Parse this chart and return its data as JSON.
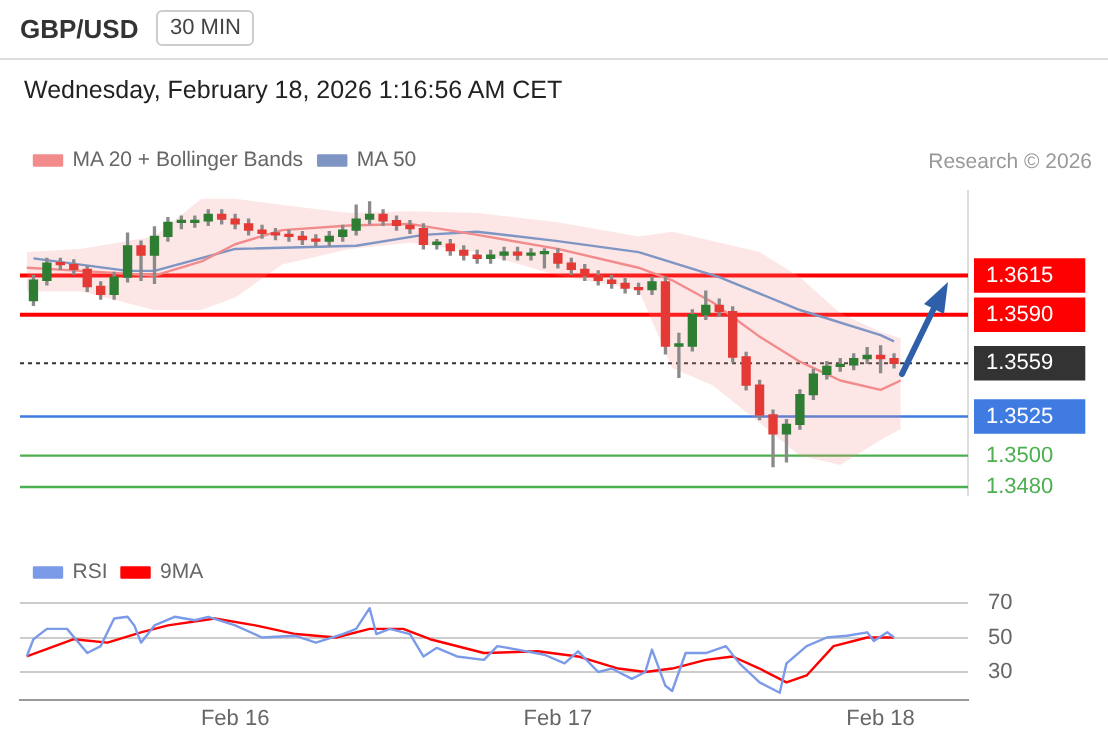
{
  "chart_data": [
    {
      "type": "candlestick",
      "title": "GBP/USD",
      "subtitle": "Wednesday, February 18, 2026 1:16:56 AM CET",
      "annotations": [
        "30 MIN",
        "Research © 2026"
      ],
      "x": [
        "2026-02-15T09:00",
        "2026-02-15T10:00",
        "2026-02-15T11:00",
        "2026-02-15T12:00",
        "2026-02-15T13:00",
        "2026-02-15T14:00",
        "2026-02-15T15:00",
        "2026-02-15T16:00",
        "2026-02-15T17:00",
        "2026-02-15T18:00",
        "2026-02-15T19:00",
        "2026-02-15T20:00",
        "2026-02-15T21:00",
        "2026-02-15T22:00",
        "2026-02-15T23:00",
        "2026-02-16T00:00",
        "2026-02-16T01:00",
        "2026-02-16T02:00",
        "2026-02-16T03:00",
        "2026-02-16T04:00",
        "2026-02-16T05:00",
        "2026-02-16T06:00",
        "2026-02-16T07:00",
        "2026-02-16T08:00",
        "2026-02-16T09:00",
        "2026-02-16T10:00",
        "2026-02-16T11:00",
        "2026-02-16T12:00",
        "2026-02-16T13:00",
        "2026-02-16T14:00",
        "2026-02-16T15:00",
        "2026-02-16T16:00",
        "2026-02-16T17:00",
        "2026-02-16T18:00",
        "2026-02-16T19:00",
        "2026-02-16T20:00",
        "2026-02-16T21:00",
        "2026-02-16T22:00",
        "2026-02-16T23:00",
        "2026-02-17T00:00",
        "2026-02-17T01:00",
        "2026-02-17T02:00",
        "2026-02-17T03:00",
        "2026-02-17T04:00",
        "2026-02-17T05:00",
        "2026-02-17T06:00",
        "2026-02-17T07:00",
        "2026-02-17T08:00",
        "2026-02-17T09:00",
        "2026-02-17T10:00",
        "2026-02-17T11:00",
        "2026-02-17T12:00",
        "2026-02-17T13:00",
        "2026-02-17T14:00",
        "2026-02-17T15:00",
        "2026-02-17T16:00",
        "2026-02-17T17:00",
        "2026-02-17T18:00",
        "2026-02-17T19:00",
        "2026-02-17T20:00",
        "2026-02-17T21:00",
        "2026-02-17T22:00",
        "2026-02-17T23:00",
        "2026-02-18T00:00",
        "2026-02-18T01:00"
      ],
      "ohlc": [
        [
          1.3599,
          1.3615,
          1.3596,
          1.3612
        ],
        [
          1.3612,
          1.3626,
          1.3609,
          1.3623
        ],
        [
          1.3623,
          1.3626,
          1.3619,
          1.3622
        ],
        [
          1.3622,
          1.3625,
          1.3616,
          1.3619
        ],
        [
          1.3619,
          1.3621,
          1.3605,
          1.3608
        ],
        [
          1.3608,
          1.3611,
          1.36,
          1.3603
        ],
        [
          1.3603,
          1.3617,
          1.36,
          1.3614
        ],
        [
          1.3614,
          1.3642,
          1.3611,
          1.3634
        ],
        [
          1.3634,
          1.3637,
          1.3612,
          1.3628
        ],
        [
          1.3628,
          1.3646,
          1.361,
          1.364
        ],
        [
          1.364,
          1.3652,
          1.3637,
          1.3649
        ],
        [
          1.3649,
          1.3653,
          1.3645,
          1.3649
        ],
        [
          1.3649,
          1.3653,
          1.3646,
          1.365
        ],
        [
          1.365,
          1.3657,
          1.3647,
          1.3654
        ],
        [
          1.3654,
          1.3657,
          1.3648,
          1.3651
        ],
        [
          1.3651,
          1.3654,
          1.3645,
          1.3648
        ],
        [
          1.3648,
          1.3651,
          1.3641,
          1.3644
        ],
        [
          1.3644,
          1.3647,
          1.3639,
          1.3642
        ],
        [
          1.3642,
          1.3645,
          1.3638,
          1.3641
        ],
        [
          1.3641,
          1.3644,
          1.3637,
          1.364
        ],
        [
          1.364,
          1.3643,
          1.3635,
          1.3638
        ],
        [
          1.3638,
          1.3641,
          1.3634,
          1.3637
        ],
        [
          1.3637,
          1.3643,
          1.3634,
          1.364
        ],
        [
          1.364,
          1.3647,
          1.3637,
          1.3644
        ],
        [
          1.3644,
          1.366,
          1.3641,
          1.3651
        ],
        [
          1.3651,
          1.3662,
          1.3648,
          1.3654
        ],
        [
          1.3654,
          1.3657,
          1.3647,
          1.365
        ],
        [
          1.365,
          1.3653,
          1.3644,
          1.3647
        ],
        [
          1.3647,
          1.365,
          1.3642,
          1.3645
        ],
        [
          1.3645,
          1.3648,
          1.3632,
          1.3635
        ],
        [
          1.3635,
          1.3638,
          1.3632,
          1.3635
        ],
        [
          1.3635,
          1.3638,
          1.3628,
          1.3631
        ],
        [
          1.3631,
          1.3634,
          1.3625,
          1.3628
        ],
        [
          1.3628,
          1.3631,
          1.3623,
          1.3626
        ],
        [
          1.3626,
          1.3631,
          1.3623,
          1.3628
        ],
        [
          1.3628,
          1.3633,
          1.3625,
          1.363
        ],
        [
          1.363,
          1.3633,
          1.3625,
          1.3628
        ],
        [
          1.3628,
          1.3632,
          1.3625,
          1.3629
        ],
        [
          1.3629,
          1.3632,
          1.362,
          1.3629
        ],
        [
          1.3629,
          1.3632,
          1.362,
          1.3623
        ],
        [
          1.3623,
          1.3626,
          1.3616,
          1.3619
        ],
        [
          1.3619,
          1.3622,
          1.3612,
          1.3615
        ],
        [
          1.3615,
          1.3618,
          1.3609,
          1.3612
        ],
        [
          1.3612,
          1.3615,
          1.3607,
          1.361
        ],
        [
          1.361,
          1.3613,
          1.3604,
          1.3607
        ],
        [
          1.3607,
          1.361,
          1.3603,
          1.3606
        ],
        [
          1.3606,
          1.3614,
          1.3603,
          1.3611
        ],
        [
          1.3611,
          1.3614,
          1.3565,
          1.357
        ],
        [
          1.357,
          1.3578,
          1.355,
          1.357
        ],
        [
          1.357,
          1.3593,
          1.3567,
          1.359
        ],
        [
          1.359,
          1.3605,
          1.3587,
          1.3596
        ],
        [
          1.3596,
          1.36,
          1.3589,
          1.3592
        ],
        [
          1.3592,
          1.3595,
          1.356,
          1.3563
        ],
        [
          1.3563,
          1.3566,
          1.3542,
          1.3545
        ],
        [
          1.3545,
          1.3548,
          1.3523,
          1.3526
        ],
        [
          1.3526,
          1.3529,
          1.3493,
          1.3514
        ],
        [
          1.3514,
          1.3523,
          1.3496,
          1.352
        ],
        [
          1.352,
          1.3542,
          1.3517,
          1.3539
        ],
        [
          1.3539,
          1.3555,
          1.3536,
          1.3552
        ],
        [
          1.3552,
          1.356,
          1.3549,
          1.3557
        ],
        [
          1.3557,
          1.3562,
          1.3554,
          1.3558
        ],
        [
          1.3558,
          1.3565,
          1.3555,
          1.3562
        ],
        [
          1.3562,
          1.3569,
          1.3559,
          1.3564
        ],
        [
          1.3564,
          1.357,
          1.3553,
          1.3562
        ],
        [
          1.3562,
          1.3565,
          1.3556,
          1.3559
        ]
      ],
      "series": [
        {
          "name": "MA 20 + Bollinger Bands",
          "type": "line",
          "color": "#f28b8b",
          "x": [
            "2026-02-15T08:30",
            "2026-02-15T12:30",
            "2026-02-15T18:00",
            "2026-02-15T21:30",
            "2026-02-16T00:00",
            "2026-02-16T03:30",
            "2026-02-16T08:30",
            "2026-02-16T13:00",
            "2026-02-16T18:00",
            "2026-02-17T00:00",
            "2026-02-17T06:00",
            "2026-02-17T08:30",
            "2026-02-17T11:30",
            "2026-02-17T15:00",
            "2026-02-17T18:00",
            "2026-02-17T21:00",
            "2026-02-18T00:00",
            "2026-02-18T01:30"
          ],
          "values": [
            1.362,
            1.3618,
            1.3615,
            1.3624,
            1.3635,
            1.3644,
            1.3647,
            1.3648,
            1.3641,
            1.3632,
            1.362,
            1.3612,
            1.3598,
            1.3576,
            1.356,
            1.3548,
            1.3542,
            1.3548
          ],
          "upper": [
            1.363,
            1.3632,
            1.364,
            1.3664,
            1.3664,
            1.366,
            1.3655,
            1.3656,
            1.3655,
            1.3649,
            1.364,
            1.3643,
            1.3637,
            1.363,
            1.3614,
            1.3591,
            1.3579,
            1.3575
          ],
          "lower": [
            1.3605,
            1.3605,
            1.3593,
            1.3593,
            1.3601,
            1.3622,
            1.3632,
            1.3636,
            1.363,
            1.3615,
            1.3606,
            1.3556,
            1.3545,
            1.3521,
            1.35,
            1.3494,
            1.351,
            1.3517
          ]
        },
        {
          "name": "MA 50",
          "type": "line",
          "color": "#7f95c4",
          "x": [
            "2026-02-15T09:00",
            "2026-02-15T16:00",
            "2026-02-15T18:00",
            "2026-02-16T00:00",
            "2026-02-16T09:00",
            "2026-02-16T14:00",
            "2026-02-16T18:00",
            "2026-02-17T00:00",
            "2026-02-17T06:00",
            "2026-02-17T12:00",
            "2026-02-17T18:00",
            "2026-02-18T00:00",
            "2026-02-18T01:00"
          ],
          "values": [
            1.3626,
            1.3618,
            1.3618,
            1.3632,
            1.3634,
            1.3641,
            1.3643,
            1.3637,
            1.363,
            1.3614,
            1.3593,
            1.3577,
            1.3573
          ]
        }
      ],
      "ref_lines": [
        {
          "axis": "y",
          "value": 1.3615,
          "color": "#ff0000"
        },
        {
          "axis": "y",
          "value": 1.359,
          "color": "#ff0000"
        },
        {
          "axis": "y",
          "value": 1.3559,
          "color": "#333333",
          "line_style": "dotted"
        },
        {
          "axis": "y",
          "value": 1.3525,
          "color": "#3f7be0"
        },
        {
          "axis": "y",
          "value": 1.35,
          "color": "#4caf50"
        },
        {
          "axis": "y",
          "value": 1.348,
          "color": "#4caf50"
        }
      ],
      "yticks": [
        1.3615,
        {
          "value": 1.359,
          "label": "1.3590"
        },
        1.3559,
        1.3525,
        {
          "value": 1.35,
          "label": "1.3500"
        },
        {
          "value": 1.348,
          "label": "1.3480"
        }
      ],
      "xlim": [
        "2026-02-15T08:00",
        "2026-02-18T06:30"
      ],
      "ylim": [
        1.3475,
        1.3669
      ],
      "legend": "top left"
    },
    {
      "type": "line",
      "series": [
        {
          "name": "RSI",
          "color": "#7b9be8",
          "x": [
            "2026-02-15T08:30",
            "2026-02-15T09:00",
            "2026-02-15T10:00",
            "2026-02-15T11:30",
            "2026-02-15T13:00",
            "2026-02-15T14:00",
            "2026-02-15T15:00",
            "2026-02-15T16:00",
            "2026-02-15T16:30",
            "2026-02-15T17:00",
            "2026-02-15T18:00",
            "2026-02-15T19:30",
            "2026-02-15T21:00",
            "2026-02-15T22:00",
            "2026-02-16T00:00",
            "2026-02-16T02:00",
            "2026-02-16T04:30",
            "2026-02-16T06:00",
            "2026-02-16T08:00",
            "2026-02-16T09:00",
            "2026-02-16T10:00",
            "2026-02-16T10:30",
            "2026-02-16T11:30",
            "2026-02-16T13:00",
            "2026-02-16T14:00",
            "2026-02-16T15:00",
            "2026-02-16T16:30",
            "2026-02-16T18:30",
            "2026-02-16T19:30",
            "2026-02-16T21:00",
            "2026-02-16T23:00",
            "2026-02-17T00:30",
            "2026-02-17T01:30",
            "2026-02-17T03:00",
            "2026-02-17T04:00",
            "2026-02-17T05:30",
            "2026-02-17T06:30",
            "2026-02-17T07:00",
            "2026-02-17T08:00",
            "2026-02-17T08:30",
            "2026-02-17T09:30",
            "2026-02-17T11:00",
            "2026-02-17T12:30",
            "2026-02-17T13:30",
            "2026-02-17T15:00",
            "2026-02-17T16:30",
            "2026-02-17T17:00",
            "2026-02-17T18:30",
            "2026-02-17T20:00",
            "2026-02-17T21:30",
            "2026-02-17T23:00",
            "2026-02-17T23:30",
            "2026-02-18T00:30",
            "2026-02-18T01:00"
          ],
          "values": [
            39,
            49,
            55,
            55,
            41,
            45,
            61,
            62,
            57,
            47,
            57,
            62,
            60,
            62,
            57,
            50,
            51,
            47,
            52,
            55,
            67,
            52,
            55,
            52,
            39,
            44,
            39,
            37,
            45,
            43,
            40,
            35,
            42,
            30,
            32,
            26,
            30,
            43,
            22,
            19,
            41,
            41,
            45,
            35,
            24,
            18,
            35,
            45,
            50,
            51,
            53,
            48,
            53,
            50
          ]
        },
        {
          "name": "9MA",
          "color": "#ff0000",
          "x": [
            "2026-02-15T08:30",
            "2026-02-15T12:00",
            "2026-02-15T14:30",
            "2026-02-15T17:00",
            "2026-02-15T19:00",
            "2026-02-15T22:30",
            "2026-02-16T01:30",
            "2026-02-16T04:30",
            "2026-02-16T07:30",
            "2026-02-16T10:00",
            "2026-02-16T12:30",
            "2026-02-16T14:30",
            "2026-02-16T18:30",
            "2026-02-16T22:30",
            "2026-02-17T01:30",
            "2026-02-17T04:30",
            "2026-02-17T06:30",
            "2026-02-17T08:30",
            "2026-02-17T11:00",
            "2026-02-17T13:00",
            "2026-02-17T15:00",
            "2026-02-17T17:00",
            "2026-02-17T18:30",
            "2026-02-17T20:30",
            "2026-02-17T23:00",
            "2026-02-18T01:00"
          ],
          "values": [
            39,
            49,
            47,
            53,
            57,
            61,
            57,
            52,
            50,
            55,
            55,
            49,
            41,
            42,
            39,
            32,
            30,
            32,
            37,
            39,
            32,
            24,
            28,
            45,
            50,
            50
          ]
        }
      ],
      "xlim": [
        "2026-02-15T08:00",
        "2026-02-18T06:30"
      ],
      "xticks": [
        {
          "value": "2026-02-16",
          "label": "Feb 16"
        },
        {
          "value": "2026-02-17",
          "label": "Feb 17"
        },
        {
          "value": "2026-02-18",
          "label": "Feb 18"
        }
      ],
      "ylim": [
        14,
        70
      ],
      "yticks": [
        30,
        50,
        70
      ],
      "grid": "y",
      "legend": "top left"
    }
  ]
}
